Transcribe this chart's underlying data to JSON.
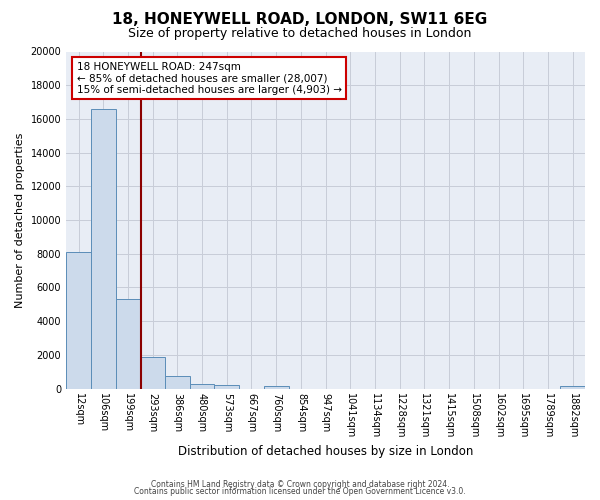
{
  "title1": "18, HONEYWELL ROAD, LONDON, SW11 6EG",
  "title2": "Size of property relative to detached houses in London",
  "xlabel": "Distribution of detached houses by size in London",
  "ylabel": "Number of detached properties",
  "bar_labels": [
    "12sqm",
    "106sqm",
    "199sqm",
    "293sqm",
    "386sqm",
    "480sqm",
    "573sqm",
    "667sqm",
    "760sqm",
    "854sqm",
    "947sqm",
    "1041sqm",
    "1134sqm",
    "1228sqm",
    "1321sqm",
    "1415sqm",
    "1508sqm",
    "1602sqm",
    "1695sqm",
    "1789sqm",
    "1882sqm"
  ],
  "bar_values": [
    8100,
    16600,
    5300,
    1850,
    750,
    280,
    200,
    0,
    150,
    0,
    0,
    0,
    0,
    0,
    0,
    0,
    0,
    0,
    0,
    0,
    150
  ],
  "bar_color": "#ccdaeb",
  "bar_edge_color": "#5b8db8",
  "ylim": [
    0,
    20000
  ],
  "yticks": [
    0,
    2000,
    4000,
    6000,
    8000,
    10000,
    12000,
    14000,
    16000,
    18000,
    20000
  ],
  "vline_color": "#8b0000",
  "annotation_title": "18 HONEYWELL ROAD: 247sqm",
  "annotation_line1": "← 85% of detached houses are smaller (28,007)",
  "annotation_line2": "15% of semi-detached houses are larger (4,903) →",
  "annotation_box_facecolor": "#ffffff",
  "annotation_box_edgecolor": "#cc0000",
  "footer1": "Contains HM Land Registry data © Crown copyright and database right 2024.",
  "footer2": "Contains public sector information licensed under the Open Government Licence v3.0.",
  "fig_bg_color": "#ffffff",
  "plot_bg_color": "#e8edf5",
  "grid_color": "#c8cdd8",
  "title1_fontsize": 11,
  "title2_fontsize": 9,
  "ylabel_fontsize": 8,
  "xlabel_fontsize": 8.5,
  "tick_fontsize": 7,
  "footer_fontsize": 5.5
}
